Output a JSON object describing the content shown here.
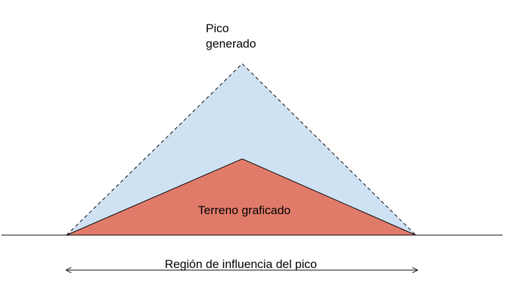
{
  "labels": {
    "peak_line1": "Pico",
    "peak_line2": "generado",
    "terrain": "Terreno graficado",
    "region": "Región de influencia del pico"
  },
  "colors": {
    "generated_peak_fill": "#cfe2f3",
    "terrain_fill": "#e07b6a",
    "stroke": "#000000",
    "background": "#ffffff"
  }
}
